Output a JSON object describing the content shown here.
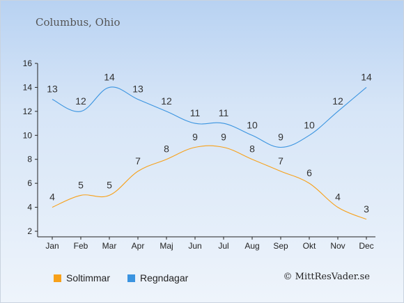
{
  "title": "Columbus, Ohio",
  "credit": "© MittResVader.se",
  "chart_data": {
    "type": "line",
    "categories": [
      "Jan",
      "Feb",
      "Mar",
      "Apr",
      "Maj",
      "Jun",
      "Jul",
      "Aug",
      "Sep",
      "Okt",
      "Nov",
      "Dec"
    ],
    "ylim": [
      2,
      16
    ],
    "yticks": [
      "2",
      "4",
      "6",
      "8",
      "10",
      "12",
      "14",
      "16"
    ],
    "legend_position": "bottom-left",
    "series": [
      {
        "name": "Soltimmar",
        "color": "#f7a11a",
        "values": [
          4,
          5,
          5,
          7,
          8,
          9,
          9,
          8,
          7,
          6,
          4,
          3
        ]
      },
      {
        "name": "Regndagar",
        "color": "#3a94e0",
        "values": [
          13,
          12,
          14,
          13,
          12,
          11,
          11,
          10,
          9,
          10,
          12,
          14
        ]
      }
    ]
  }
}
